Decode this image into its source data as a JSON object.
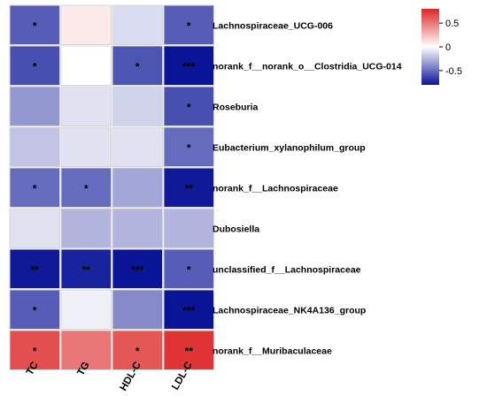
{
  "chart_data": {
    "type": "heatmap",
    "title": "",
    "columns": [
      "TC",
      "TG",
      "HDL-C",
      "LDL-C"
    ],
    "rows": [
      "Lachnospiraceae_UCG-006",
      "norank_f__norank_o__Clostridia_UCG-014",
      "Roseburia",
      "Eubacterium_xylanophilum_group",
      "norank_f__Lachnospiraceae",
      "Dubosiella",
      "unclassified_f__Lachnospiraceae",
      "Lachnospiraceae_NK4A136_group",
      "norank_f__Muribaculaceae"
    ],
    "values": [
      [
        -0.55,
        0.08,
        -0.12,
        -0.55
      ],
      [
        -0.6,
        0.0,
        -0.58,
        -0.8
      ],
      [
        -0.35,
        -0.1,
        -0.15,
        -0.6
      ],
      [
        -0.2,
        -0.1,
        -0.1,
        -0.5
      ],
      [
        -0.5,
        -0.5,
        -0.3,
        -0.78
      ],
      [
        -0.1,
        -0.25,
        -0.25,
        -0.25
      ],
      [
        -0.78,
        -0.75,
        -0.82,
        -0.55
      ],
      [
        -0.55,
        -0.05,
        -0.4,
        -0.8
      ],
      [
        0.65,
        0.5,
        0.62,
        0.75
      ]
    ],
    "significance": [
      [
        "*",
        "",
        "",
        "*"
      ],
      [
        "*",
        "",
        "*",
        "***"
      ],
      [
        "",
        "",
        "",
        "*"
      ],
      [
        "",
        "",
        "",
        "*"
      ],
      [
        "*",
        "*",
        "",
        "**"
      ],
      [
        "",
        "",
        "",
        ""
      ],
      [
        "**",
        "**",
        "***",
        "*"
      ],
      [
        "*",
        "",
        "",
        "***"
      ],
      [
        "*",
        "",
        "*",
        "**"
      ]
    ],
    "colorbar": {
      "range": [
        -0.8,
        0.8
      ],
      "ticks": [
        0.5,
        0,
        -0.5
      ],
      "tick_labels": [
        "0.5",
        "0",
        "-0.5"
      ],
      "colors": {
        "low": "#0a1496",
        "mid": "#ffffff",
        "high": "#dc2626"
      }
    },
    "grid": true,
    "legend_position": "top-right"
  }
}
